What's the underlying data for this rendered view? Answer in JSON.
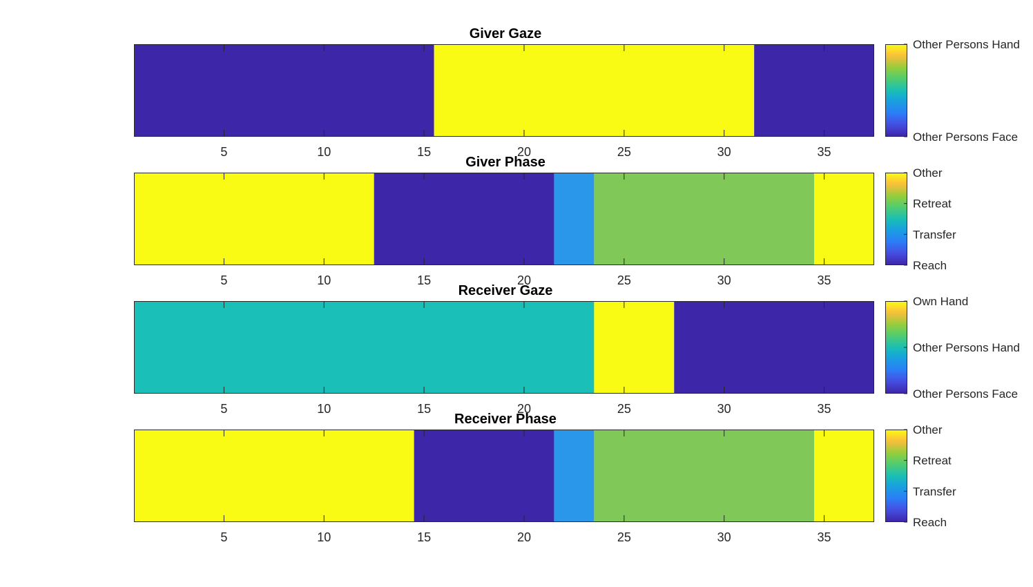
{
  "chart_data": [
    {
      "type": "heatmap",
      "title": "Giver Gaze",
      "x_ticks": [
        5,
        10,
        15,
        20,
        25,
        30,
        35
      ],
      "xlim": [
        0.5,
        37.5
      ],
      "segments": [
        {
          "start": 1,
          "end": 15,
          "value": 0
        },
        {
          "start": 16,
          "end": 31,
          "value": 1
        },
        {
          "start": 32,
          "end": 37,
          "value": 0
        }
      ],
      "clim": [
        0,
        1
      ],
      "colorbar": {
        "ticks": [
          {
            "value": 0,
            "label": "Other Persons Face"
          },
          {
            "value": 1,
            "label": "Other Persons Hand"
          }
        ]
      }
    },
    {
      "type": "heatmap",
      "title": "Giver Phase",
      "x_ticks": [
        5,
        10,
        15,
        20,
        25,
        30,
        35
      ],
      "xlim": [
        0.5,
        37.5
      ],
      "segments": [
        {
          "start": 1,
          "end": 12,
          "value": 3
        },
        {
          "start": 13,
          "end": 21,
          "value": 0
        },
        {
          "start": 22,
          "end": 23,
          "value": 1
        },
        {
          "start": 24,
          "end": 34,
          "value": 2
        },
        {
          "start": 35,
          "end": 37,
          "value": 3
        }
      ],
      "clim": [
        0,
        3
      ],
      "colorbar": {
        "ticks": [
          {
            "value": 0,
            "label": "Reach"
          },
          {
            "value": 1,
            "label": "Transfer"
          },
          {
            "value": 2,
            "label": "Retreat"
          },
          {
            "value": 3,
            "label": "Other"
          }
        ]
      }
    },
    {
      "type": "heatmap",
      "title": "Receiver Gaze",
      "x_ticks": [
        5,
        10,
        15,
        20,
        25,
        30,
        35
      ],
      "xlim": [
        0.5,
        37.5
      ],
      "segments": [
        {
          "start": 1,
          "end": 23,
          "value": 1
        },
        {
          "start": 24,
          "end": 27,
          "value": 2
        },
        {
          "start": 28,
          "end": 37,
          "value": 0
        }
      ],
      "clim": [
        0,
        2
      ],
      "colorbar": {
        "ticks": [
          {
            "value": 0,
            "label": "Other Persons Face"
          },
          {
            "value": 1,
            "label": "Other Persons Hand"
          },
          {
            "value": 2,
            "label": "Own Hand"
          }
        ]
      }
    },
    {
      "type": "heatmap",
      "title": "Receiver Phase",
      "x_ticks": [
        5,
        10,
        15,
        20,
        25,
        30,
        35
      ],
      "xlim": [
        0.5,
        37.5
      ],
      "segments": [
        {
          "start": 1,
          "end": 14,
          "value": 3
        },
        {
          "start": 15,
          "end": 21,
          "value": 0
        },
        {
          "start": 22,
          "end": 23,
          "value": 1
        },
        {
          "start": 24,
          "end": 34,
          "value": 2
        },
        {
          "start": 35,
          "end": 37,
          "value": 3
        }
      ],
      "clim": [
        0,
        3
      ],
      "colorbar": {
        "ticks": [
          {
            "value": 0,
            "label": "Reach"
          },
          {
            "value": 1,
            "label": "Transfer"
          },
          {
            "value": 2,
            "label": "Retreat"
          },
          {
            "value": 3,
            "label": "Other"
          }
        ]
      }
    }
  ],
  "colormap": "parula"
}
